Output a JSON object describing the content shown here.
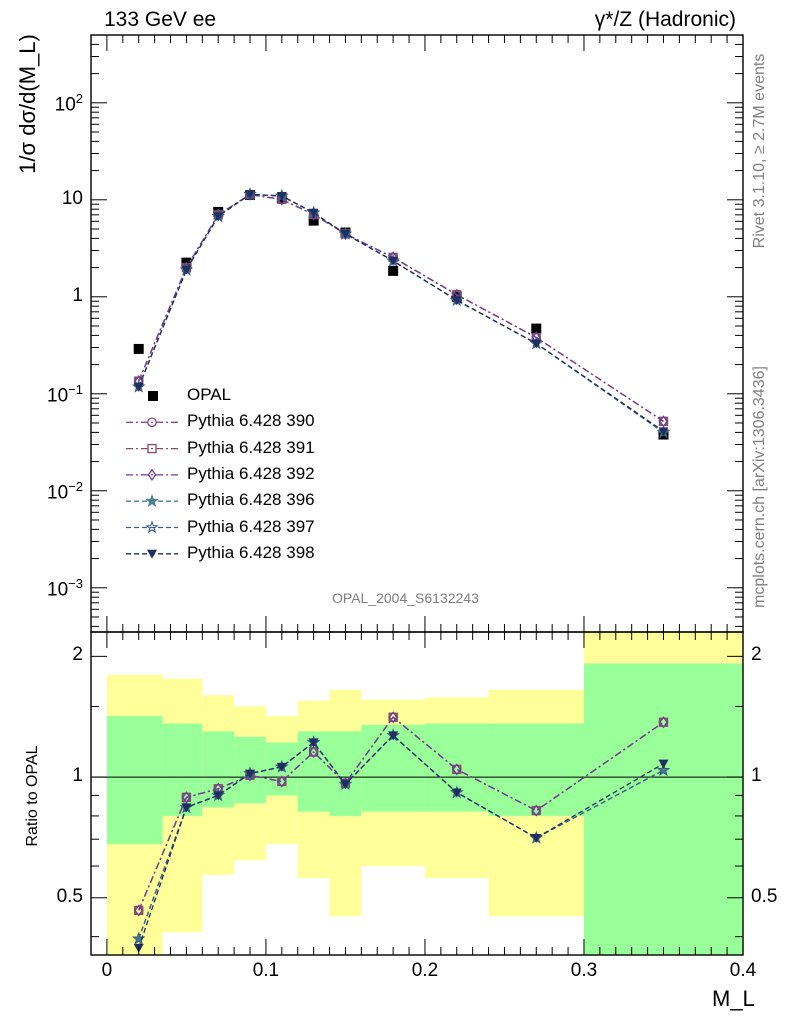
{
  "header": {
    "left": "133 GeV ee",
    "right": "γ*/Z (Hadronic)"
  },
  "side": {
    "rivet": "Rivet 3.1.10, ≥ 2.7M events",
    "mcplots": "mcplots.cern.ch [arXiv:1306.3436]"
  },
  "analysis_id": "OPAL_2004_S6132243",
  "chart_data": [
    {
      "type": "line",
      "panel": "main",
      "ylabel": "1/σ dσ/d(M_L)",
      "yscale": "log",
      "ylim": [
        0.00035,
        500
      ],
      "xlim": [
        -0.01,
        0.4
      ],
      "ytick_labels": [
        "10^-3",
        "10^-2",
        "10^-1",
        "1",
        "10",
        "10^2"
      ],
      "x": [
        0.02,
        0.05,
        0.07,
        0.09,
        0.11,
        0.13,
        0.15,
        0.18,
        0.22,
        0.27,
        0.35
      ],
      "series": [
        {
          "name": "OPAL",
          "marker": "square",
          "color": "#000000",
          "values": [
            0.29,
            2.25,
            7.5,
            11.2,
            10.4,
            6.1,
            4.6,
            1.85,
            1.0,
            0.47,
            0.038
          ]
        },
        {
          "name": "Pythia 6.428 390",
          "marker": "circle",
          "color": "#8b4c8c",
          "dash": "dashdot",
          "values": [
            0.135,
            2.0,
            7.0,
            11.3,
            10.1,
            7.05,
            4.45,
            2.55,
            1.05,
            0.38,
            0.052
          ]
        },
        {
          "name": "Pythia 6.428 391",
          "marker": "square-open",
          "color": "#8c4c5f",
          "dash": "dashdot",
          "values": [
            0.135,
            2.0,
            7.0,
            11.3,
            10.1,
            7.05,
            4.45,
            2.55,
            1.05,
            0.38,
            0.052
          ]
        },
        {
          "name": "Pythia 6.428 392",
          "marker": "diamond-open",
          "color": "#6a3d9a",
          "dash": "dashdot",
          "values": [
            0.135,
            2.0,
            7.0,
            11.3,
            10.1,
            7.05,
            4.45,
            2.55,
            1.05,
            0.38,
            0.052
          ]
        },
        {
          "name": "Pythia 6.428 396",
          "marker": "star",
          "color": "#4a7f8c",
          "dash": "dashed",
          "values": [
            0.118,
            1.9,
            6.75,
            11.4,
            10.95,
            7.35,
            4.45,
            2.35,
            0.92,
            0.33,
            0.04
          ]
        },
        {
          "name": "Pythia 6.428 397",
          "marker": "star-open",
          "color": "#3a5f8a",
          "dash": "dashed",
          "values": [
            0.118,
            1.9,
            6.75,
            11.4,
            10.95,
            7.35,
            4.45,
            2.35,
            0.92,
            0.33,
            0.04
          ]
        },
        {
          "name": "Pythia 6.428 398",
          "marker": "triangle-down",
          "color": "#1f2f5f",
          "dash": "dashed",
          "values": [
            0.118,
            1.9,
            6.75,
            11.4,
            10.95,
            7.35,
            4.45,
            2.35,
            0.92,
            0.33,
            0.041
          ]
        }
      ]
    },
    {
      "type": "line",
      "panel": "ratio",
      "ylabel": "Ratio to OPAL",
      "xlabel": "M_L",
      "yscale": "log",
      "ylim": [
        0.36,
        2.3
      ],
      "xlim": [
        -0.01,
        0.4
      ],
      "ytick_labels": [
        "0.5",
        "1",
        "2"
      ],
      "xtick_labels": [
        "0",
        "0.1",
        "0.2",
        "0.3",
        "0.4"
      ],
      "reference": 1,
      "uncertainty_bands": {
        "bins": [
          [
            0.0,
            0.035
          ],
          [
            0.035,
            0.06
          ],
          [
            0.06,
            0.08
          ],
          [
            0.08,
            0.1
          ],
          [
            0.1,
            0.12
          ],
          [
            0.12,
            0.14
          ],
          [
            0.14,
            0.16
          ],
          [
            0.16,
            0.2
          ],
          [
            0.2,
            0.24
          ],
          [
            0.24,
            0.3
          ],
          [
            0.3,
            0.4
          ]
        ],
        "inner": {
          "color": "#99ff99",
          "lo": [
            0.68,
            0.8,
            0.84,
            0.86,
            0.9,
            0.82,
            0.8,
            0.82,
            0.82,
            0.8,
            0.36
          ],
          "hi": [
            1.42,
            1.36,
            1.3,
            1.26,
            1.22,
            1.3,
            1.3,
            1.35,
            1.36,
            1.36,
            1.92
          ]
        },
        "outer": {
          "color": "#ffff99",
          "lo": [
            0.36,
            0.41,
            0.57,
            0.62,
            0.68,
            0.56,
            0.45,
            0.6,
            0.56,
            0.45,
            0.36
          ],
          "hi": [
            1.8,
            1.76,
            1.6,
            1.5,
            1.42,
            1.55,
            1.65,
            1.56,
            1.58,
            1.65,
            2.3
          ]
        }
      },
      "x": [
        0.02,
        0.05,
        0.07,
        0.09,
        0.11,
        0.13,
        0.15,
        0.18,
        0.22,
        0.27,
        0.35
      ],
      "series": [
        {
          "name": "Pythia 6.428 390",
          "marker": "circle",
          "color": "#8b4c8c",
          "dash": "dashdot",
          "values": [
            0.465,
            0.89,
            0.935,
            1.01,
            0.975,
            1.155,
            0.965,
            1.41,
            1.045,
            0.825,
            1.37
          ]
        },
        {
          "name": "Pythia 6.428 391",
          "marker": "square-open",
          "color": "#8c4c5f",
          "dash": "dashdot",
          "values": [
            0.465,
            0.89,
            0.935,
            1.01,
            0.975,
            1.155,
            0.965,
            1.41,
            1.045,
            0.825,
            1.37
          ]
        },
        {
          "name": "Pythia 6.428 392",
          "marker": "diamond-open",
          "color": "#6a3d9a",
          "dash": "dashdot",
          "values": [
            0.465,
            0.89,
            0.935,
            1.01,
            0.975,
            1.155,
            0.965,
            1.41,
            1.045,
            0.825,
            1.37
          ]
        },
        {
          "name": "Pythia 6.428 396",
          "marker": "star",
          "color": "#4a7f8c",
          "dash": "dashed",
          "values": [
            0.395,
            0.84,
            0.9,
            1.02,
            1.06,
            1.22,
            0.96,
            1.27,
            0.915,
            0.705,
            1.04
          ]
        },
        {
          "name": "Pythia 6.428 397",
          "marker": "star-open",
          "color": "#3a5f8a",
          "dash": "dashed",
          "values": [
            0.395,
            0.84,
            0.9,
            1.02,
            1.06,
            1.22,
            0.96,
            1.27,
            0.915,
            0.705,
            1.04
          ]
        },
        {
          "name": "Pythia 6.428 398",
          "marker": "triangle-down",
          "color": "#1f2f5f",
          "dash": "dashed",
          "values": [
            0.375,
            0.84,
            0.9,
            1.02,
            1.06,
            1.22,
            0.96,
            1.27,
            0.915,
            0.705,
            1.08
          ]
        }
      ]
    }
  ]
}
